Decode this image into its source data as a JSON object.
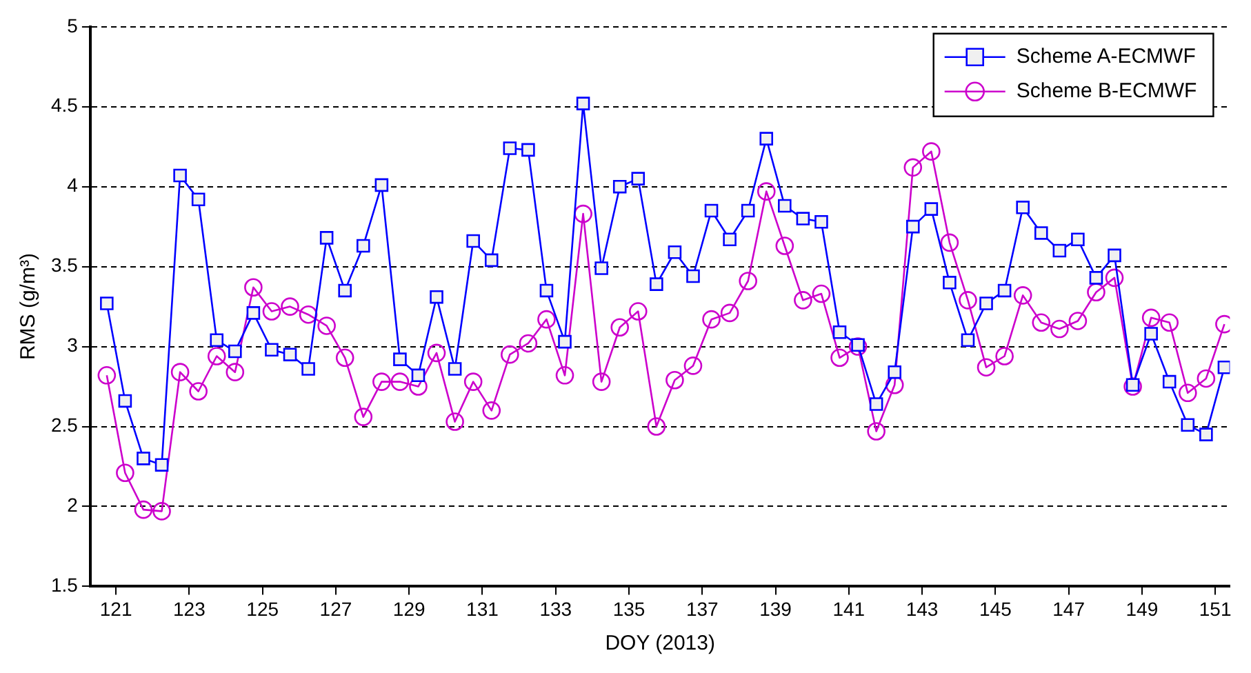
{
  "chart_data": {
    "type": "line",
    "xlabel": "DOY (2013)",
    "ylabel": "RMS (g/m³)",
    "x": [
      120.75,
      121.25,
      121.75,
      122.25,
      122.75,
      123.25,
      123.75,
      124.25,
      124.75,
      125.25,
      125.75,
      126.25,
      126.75,
      127.25,
      127.75,
      128.25,
      128.75,
      129.25,
      129.75,
      130.25,
      130.75,
      131.25,
      131.75,
      132.25,
      132.75,
      133.25,
      133.75,
      134.25,
      134.75,
      135.25,
      135.75,
      136.25,
      136.75,
      137.25,
      137.75,
      138.25,
      138.75,
      139.25,
      139.75,
      140.25,
      140.75,
      141.25,
      141.75,
      142.25,
      142.75,
      143.25,
      143.75,
      144.25,
      144.75,
      145.25,
      145.75,
      146.25,
      146.75,
      147.25,
      147.75,
      148.25,
      148.75,
      149.25,
      149.75,
      150.25,
      150.75,
      151.25
    ],
    "series": [
      {
        "name": "Scheme A-ECMWF",
        "color": "#0000ff",
        "marker": "square",
        "values": [
          3.27,
          2.66,
          2.3,
          2.26,
          4.07,
          3.92,
          3.04,
          2.97,
          3.21,
          2.98,
          2.95,
          2.86,
          3.68,
          3.35,
          3.63,
          4.01,
          2.92,
          2.82,
          3.31,
          2.86,
          3.66,
          3.54,
          4.24,
          4.23,
          3.35,
          3.03,
          4.52,
          3.49,
          4.0,
          4.05,
          3.39,
          3.59,
          3.44,
          3.85,
          3.67,
          3.85,
          4.3,
          3.88,
          3.8,
          3.78,
          3.09,
          3.01,
          2.64,
          2.84,
          3.75,
          3.86,
          3.4,
          3.04,
          3.27,
          3.35,
          3.87,
          3.71,
          3.6,
          3.67,
          3.43,
          3.57,
          2.76,
          3.08,
          2.78,
          2.51,
          2.45,
          2.87
        ]
      },
      {
        "name": "Scheme B-ECMWF",
        "color": "#cc00cc",
        "marker": "circle",
        "values": [
          2.82,
          2.21,
          1.98,
          1.97,
          2.84,
          2.72,
          2.94,
          2.84,
          3.37,
          3.22,
          3.25,
          3.2,
          3.13,
          2.93,
          2.56,
          2.78,
          2.78,
          2.75,
          2.96,
          2.53,
          2.78,
          2.6,
          2.95,
          3.02,
          3.17,
          2.82,
          3.83,
          2.78,
          3.12,
          3.22,
          2.5,
          2.79,
          2.88,
          3.17,
          3.21,
          3.41,
          3.97,
          3.63,
          3.29,
          3.33,
          2.93,
          3.0,
          2.47,
          2.76,
          4.12,
          4.22,
          3.65,
          3.29,
          2.87,
          2.94,
          3.32,
          3.15,
          3.11,
          3.16,
          3.34,
          3.43,
          2.75,
          3.18,
          3.15,
          2.71,
          2.8,
          3.14
        ]
      }
    ],
    "xlim": [
      120.3,
      151.4
    ],
    "xticks": [
      121,
      123,
      125,
      127,
      129,
      131,
      133,
      135,
      137,
      139,
      141,
      143,
      145,
      147,
      149,
      151
    ],
    "ylim": [
      1.5,
      5
    ],
    "yticks": [
      1.5,
      2,
      2.5,
      3,
      3.5,
      4,
      4.5,
      5
    ],
    "grid": "y",
    "legend": "top right",
    "line_style": "solid"
  }
}
